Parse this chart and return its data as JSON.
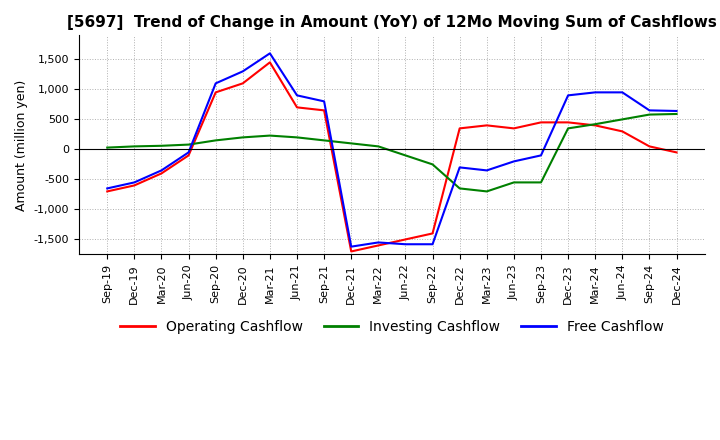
{
  "title": "[5697]  Trend of Change in Amount (YoY) of 12Mo Moving Sum of Cashflows",
  "ylabel": "Amount (million yen)",
  "ylim": [
    -1750,
    1900
  ],
  "yticks": [
    -1500,
    -1000,
    -500,
    0,
    500,
    1000,
    1500
  ],
  "legend_labels": [
    "Operating Cashflow",
    "Investing Cashflow",
    "Free Cashflow"
  ],
  "legend_colors": [
    "#ff0000",
    "#008000",
    "#0000ff"
  ],
  "x_labels": [
    "Sep-19",
    "Dec-19",
    "Mar-20",
    "Jun-20",
    "Sep-20",
    "Dec-20",
    "Mar-21",
    "Jun-21",
    "Sep-21",
    "Dec-21",
    "Mar-22",
    "Jun-22",
    "Sep-22",
    "Dec-22",
    "Mar-23",
    "Jun-23",
    "Sep-23",
    "Dec-23",
    "Mar-24",
    "Jun-24",
    "Sep-24",
    "Dec-24"
  ],
  "operating": [
    -700,
    -600,
    -400,
    -100,
    950,
    1100,
    1450,
    700,
    650,
    -1700,
    -1600,
    -1500,
    -1400,
    350,
    400,
    350,
    450,
    450,
    400,
    300,
    50,
    -50
  ],
  "investing": [
    30,
    50,
    60,
    80,
    150,
    200,
    230,
    200,
    150,
    100,
    50,
    -100,
    -250,
    -650,
    -700,
    -550,
    -550,
    350,
    420,
    500,
    580,
    590
  ],
  "free": [
    -650,
    -550,
    -350,
    -50,
    1100,
    1300,
    1600,
    900,
    800,
    -1620,
    -1550,
    -1580,
    -1580,
    -300,
    -350,
    -200,
    -100,
    900,
    950,
    950,
    650,
    640
  ],
  "background_color": "#ffffff",
  "grid_color": "#b0b0b0",
  "title_fontsize": 11,
  "axis_fontsize": 9,
  "tick_fontsize": 8
}
